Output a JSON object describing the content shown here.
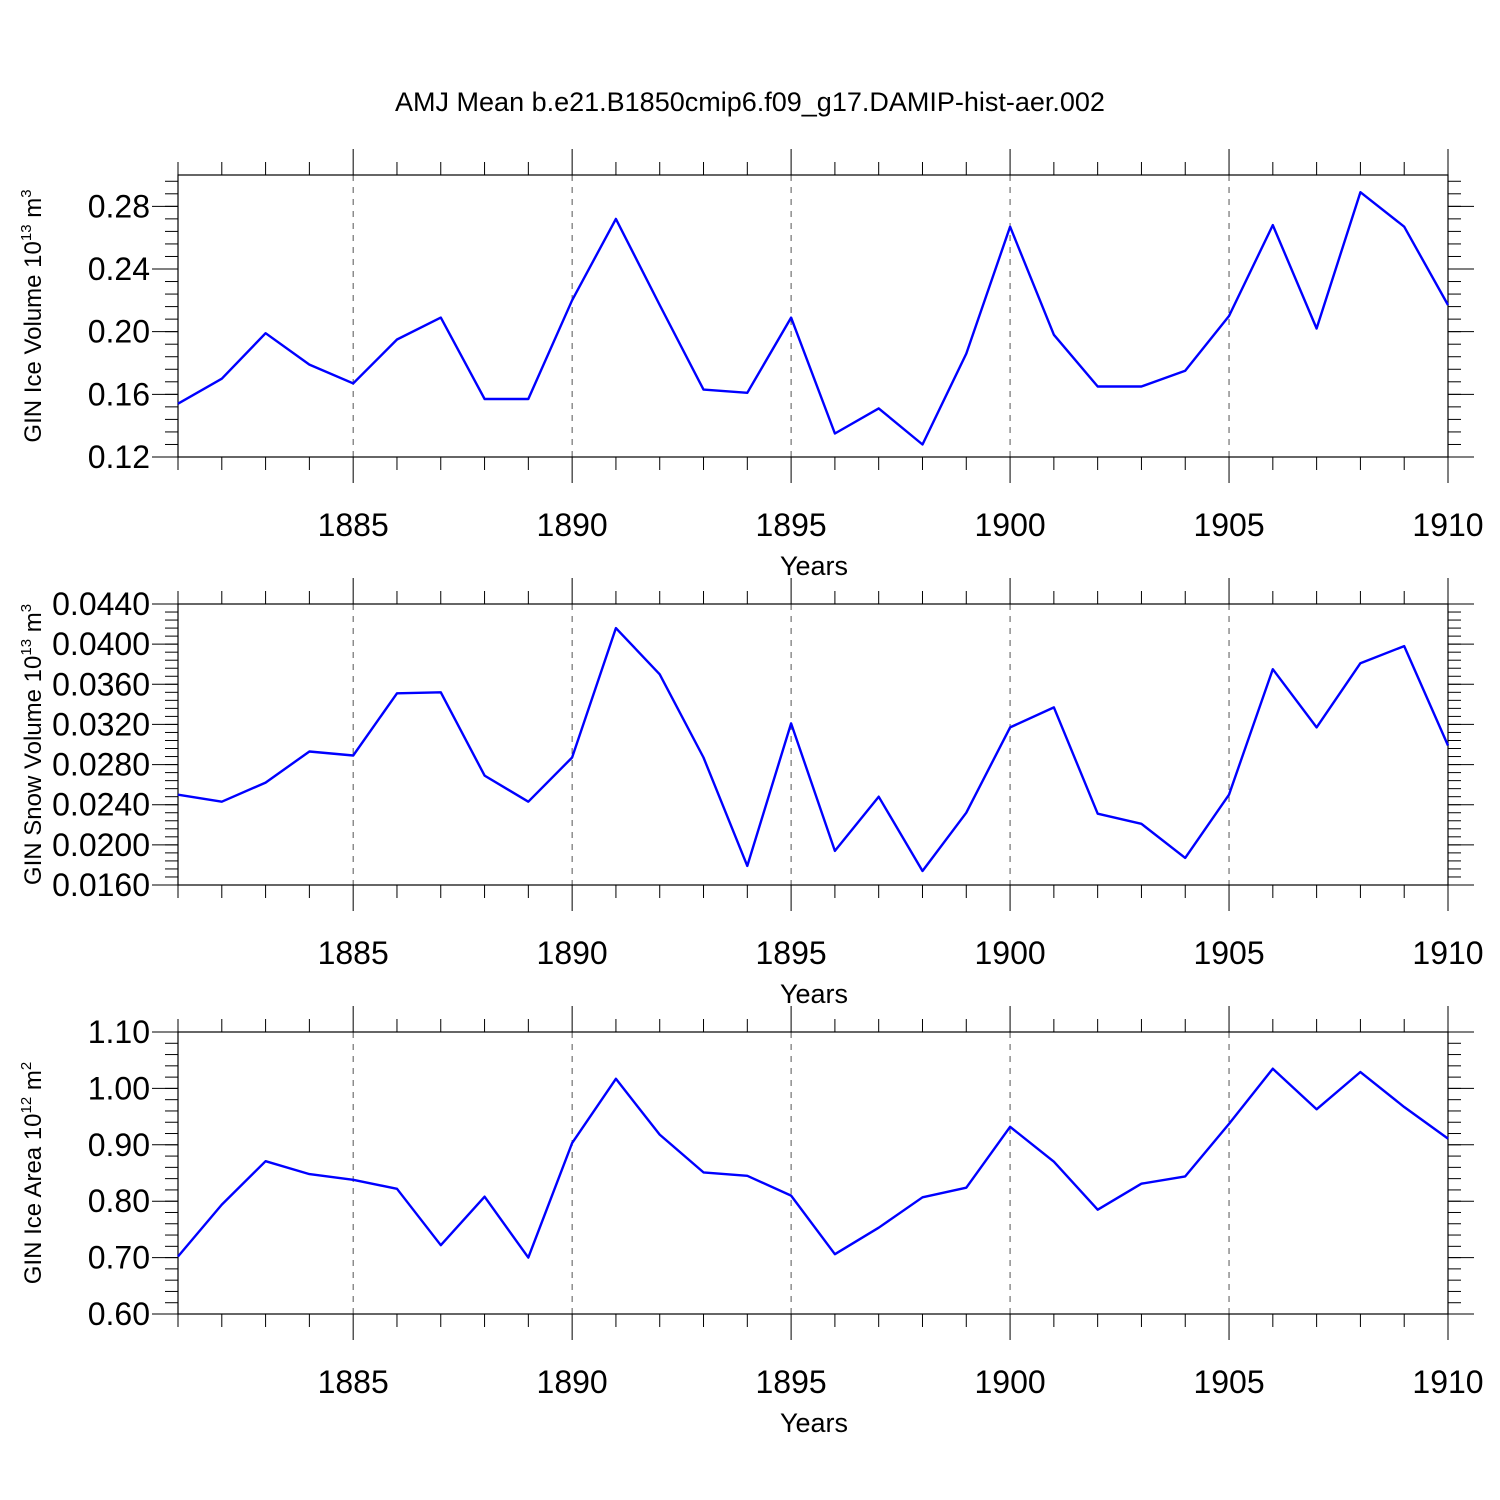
{
  "title": "AMJ Mean b.e21.B1850cmip6.f09_g17.DAMIP-hist-aer.002",
  "chart_data": [
    {
      "type": "line",
      "name": "ice-volume",
      "ylabel": "GIN Ice Volume 10",
      "ylabel_exp": "13",
      "ylabel_unit": " m",
      "ylabel_unit_exp": "3",
      "xlabel": "Years",
      "xlim": [
        1881,
        1910
      ],
      "ylim": [
        0.12,
        0.3
      ],
      "yticks": [
        "0.12",
        "0.16",
        "0.20",
        "0.24",
        "0.28"
      ],
      "xticks": [
        "1885",
        "1890",
        "1895",
        "1900",
        "1905",
        "1910"
      ],
      "x": [
        1881,
        1882,
        1883,
        1884,
        1885,
        1886,
        1887,
        1888,
        1889,
        1890,
        1891,
        1892,
        1893,
        1894,
        1895,
        1896,
        1897,
        1898,
        1899,
        1900,
        1901,
        1902,
        1903,
        1904,
        1905,
        1906,
        1907,
        1908,
        1909,
        1910
      ],
      "values": [
        0.154,
        0.17,
        0.199,
        0.179,
        0.167,
        0.195,
        0.209,
        0.157,
        0.157,
        0.22,
        0.272,
        0.217,
        0.163,
        0.161,
        0.209,
        0.135,
        0.151,
        0.128,
        0.186,
        0.267,
        0.198,
        0.165,
        0.165,
        0.175,
        0.21,
        0.268,
        0.202,
        0.289,
        0.267,
        0.217
      ],
      "color": "#0000ff"
    },
    {
      "type": "line",
      "name": "snow-volume",
      "ylabel": "GIN Snow Volume 10",
      "ylabel_exp": "13",
      "ylabel_unit": " m",
      "ylabel_unit_exp": "3",
      "xlabel": "Years",
      "xlim": [
        1881,
        1910
      ],
      "ylim": [
        0.016,
        0.044
      ],
      "yticks": [
        "0.0160",
        "0.0200",
        "0.0240",
        "0.0280",
        "0.0320",
        "0.0360",
        "0.0400",
        "0.0440"
      ],
      "xticks": [
        "1885",
        "1890",
        "1895",
        "1900",
        "1905",
        "1910"
      ],
      "x": [
        1881,
        1882,
        1883,
        1884,
        1885,
        1886,
        1887,
        1888,
        1889,
        1890,
        1891,
        1892,
        1893,
        1894,
        1895,
        1896,
        1897,
        1898,
        1899,
        1900,
        1901,
        1902,
        1903,
        1904,
        1905,
        1906,
        1907,
        1908,
        1909,
        1910
      ],
      "values": [
        0.025,
        0.0243,
        0.0262,
        0.0293,
        0.0289,
        0.0351,
        0.0352,
        0.0269,
        0.0243,
        0.0287,
        0.0416,
        0.037,
        0.0287,
        0.0179,
        0.0321,
        0.0194,
        0.0248,
        0.0174,
        0.0232,
        0.0317,
        0.0337,
        0.0231,
        0.0221,
        0.0187,
        0.025,
        0.0375,
        0.0317,
        0.0381,
        0.0398,
        0.0299
      ],
      "color": "#0000ff"
    },
    {
      "type": "line",
      "name": "ice-area",
      "ylabel": "GIN Ice Area 10",
      "ylabel_exp": "12",
      "ylabel_unit": " m",
      "ylabel_unit_exp": "2",
      "xlabel": "Years",
      "xlim": [
        1881,
        1910
      ],
      "ylim": [
        0.6,
        1.1
      ],
      "yticks": [
        "0.60",
        "0.70",
        "0.80",
        "0.90",
        "1.00",
        "1.10"
      ],
      "xticks": [
        "1885",
        "1890",
        "1895",
        "1900",
        "1905",
        "1910"
      ],
      "x": [
        1881,
        1882,
        1883,
        1884,
        1885,
        1886,
        1887,
        1888,
        1889,
        1890,
        1891,
        1892,
        1893,
        1894,
        1895,
        1896,
        1897,
        1898,
        1899,
        1900,
        1901,
        1902,
        1903,
        1904,
        1905,
        1906,
        1907,
        1908,
        1909,
        1910
      ],
      "values": [
        0.702,
        0.794,
        0.871,
        0.848,
        0.838,
        0.822,
        0.722,
        0.808,
        0.7,
        0.903,
        1.017,
        0.918,
        0.851,
        0.845,
        0.81,
        0.706,
        0.753,
        0.807,
        0.824,
        0.932,
        0.87,
        0.785,
        0.831,
        0.844,
        0.937,
        1.035,
        0.963,
        1.029,
        0.967,
        0.911
      ],
      "color": "#0000ff"
    }
  ]
}
